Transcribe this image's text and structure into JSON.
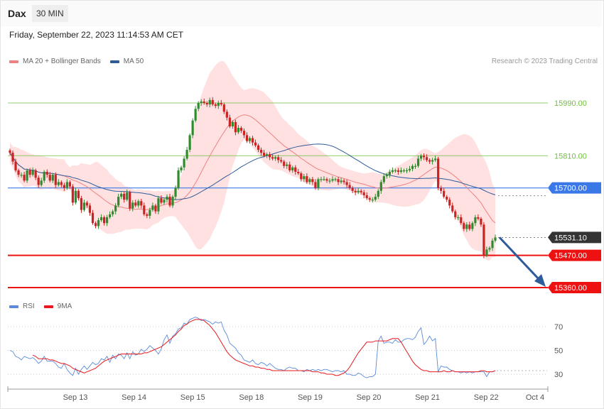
{
  "header": {
    "instrument": "Dax",
    "timeframe": "30 MIN"
  },
  "timestamp": "Friday, September 22, 2023 11:14:53 AM CET",
  "legend_main": [
    {
      "label": "MA 20 + Bollinger Bands",
      "color": "#f08080"
    },
    {
      "label": "MA 50",
      "color": "#2f5b9a"
    }
  ],
  "credit": "Research © 2023 Trading Central",
  "legend_rsi": [
    {
      "label": "RSI",
      "color": "#5b8bd9"
    },
    {
      "label": "9MA",
      "color": "#e8181e"
    }
  ],
  "colors": {
    "up": "#2e8b2e",
    "down": "#cc2222",
    "band": "#ffdcdc",
    "resistance": "#6fbf3c",
    "pivot": "#3b78e7",
    "support": "#ee1111",
    "price": "#333333",
    "arrow": "#2f5b9a"
  },
  "chart_data": [
    {
      "type": "candlestick",
      "ylim": [
        15278,
        15665
      ],
      "horizontal_levels": [
        {
          "value": 15990,
          "label": "15990.00",
          "kind": "resistance"
        },
        {
          "value": 15810,
          "label": "15810.00",
          "kind": "resistance"
        },
        {
          "value": 15700,
          "label": "15700.00",
          "kind": "pivot"
        },
        {
          "value": 15531.1,
          "label": "15531.10",
          "kind": "last-price"
        },
        {
          "value": 15470,
          "label": "15470.00",
          "kind": "support"
        },
        {
          "value": 15360,
          "label": "15360.00",
          "kind": "support"
        }
      ],
      "x_labels": [
        "Sep 13",
        "Sep 14",
        "Sep 15",
        "Sep 18",
        "Sep 19",
        "Sep 20",
        "Sep 21",
        "Sep 22",
        "Oct 4"
      ],
      "closes": [
        15820,
        15790,
        15760,
        15745,
        15745,
        15725,
        15760,
        15745,
        15760,
        15735,
        15710,
        15725,
        15755,
        15745,
        15725,
        15745,
        15710,
        15720,
        15710,
        15700,
        15720,
        15705,
        15650,
        15690,
        15665,
        15625,
        15650,
        15640,
        15615,
        15580,
        15570,
        15590,
        15600,
        15580,
        15600,
        15610,
        15620,
        15640,
        15670,
        15680,
        15660,
        15685,
        15630,
        15650,
        15640,
        15655,
        15640,
        15610,
        15605,
        15625,
        15640,
        15620,
        15665,
        15650,
        15660,
        15670,
        15640,
        15670,
        15700,
        15760,
        15770,
        15800,
        15830,
        15880,
        15930,
        15970,
        15990,
        15995,
        15990,
        15985,
        16000,
        15985,
        15980,
        15990,
        15985,
        15960,
        15940,
        15910,
        15925,
        15890,
        15905,
        15895,
        15880,
        15860,
        15870,
        15855,
        15845,
        15830,
        15820,
        15810,
        15815,
        15805,
        15800,
        15805,
        15795,
        15790,
        15775,
        15780,
        15760,
        15770,
        15755,
        15750,
        15730,
        15740,
        15720,
        15730,
        15720,
        15700,
        15730,
        15730,
        15730,
        15725,
        15725,
        15730,
        15730,
        15720,
        15725,
        15720,
        15710,
        15700,
        15690,
        15685,
        15690,
        15685,
        15675,
        15665,
        15660,
        15660,
        15670,
        15690,
        15720,
        15740,
        15745,
        15755,
        15760,
        15760,
        15755,
        15760,
        15760,
        15760,
        15765,
        15775,
        15775,
        15800,
        15810,
        15805,
        15795,
        15790,
        15795,
        15800,
        15700,
        15690,
        15670,
        15660,
        15640,
        15620,
        15600,
        15600,
        15580,
        15560,
        15575,
        15560,
        15580,
        15600,
        15595,
        15575,
        15470,
        15490,
        15495,
        15520,
        15531.1
      ]
    },
    {
      "type": "line",
      "ylim": [
        20,
        85
      ],
      "yticks": [
        70,
        50,
        30
      ],
      "series": [
        {
          "name": "RSI",
          "values": [
            50,
            49,
            45,
            44,
            42,
            45,
            44,
            43,
            44,
            42,
            39,
            41,
            45,
            41,
            41,
            41,
            39,
            36,
            35,
            39,
            34,
            31,
            29,
            35,
            30,
            34,
            37,
            34,
            37,
            40,
            38,
            39,
            43,
            42,
            45,
            40,
            46,
            43,
            47,
            46,
            43,
            48,
            43,
            49,
            46,
            47,
            51,
            49,
            51,
            54,
            52,
            50,
            47,
            51,
            59,
            63,
            56,
            62,
            64,
            68,
            69,
            73,
            72,
            76,
            77,
            78,
            77,
            75,
            76,
            75,
            74,
            72,
            74,
            73,
            74,
            67,
            63,
            56,
            54,
            52,
            48,
            46,
            42,
            41,
            40,
            42,
            39,
            38,
            40,
            39,
            37,
            39,
            37,
            35,
            34,
            34,
            33,
            35,
            36,
            35,
            35,
            33,
            33,
            32,
            34,
            33,
            34,
            33,
            34,
            33,
            34,
            34,
            33,
            32,
            33,
            33,
            32,
            33,
            30,
            30,
            29,
            29,
            31,
            30,
            28,
            27,
            28,
            28,
            30,
            58,
            62,
            56,
            57,
            57,
            56,
            59,
            57,
            57,
            59,
            60,
            60,
            59,
            61,
            66,
            69,
            55,
            58,
            62,
            58,
            60,
            32,
            37,
            36,
            36,
            34,
            33,
            32,
            32,
            31,
            32,
            31,
            32,
            31,
            32,
            32,
            32,
            32,
            28,
            32,
            32,
            33
          ]
        },
        {
          "name": "9MA",
          "values": [
            null,
            null,
            null,
            null,
            null,
            null,
            null,
            null,
            46,
            45,
            43,
            43,
            43,
            43,
            42,
            42,
            41,
            40,
            39,
            39,
            38,
            37,
            35,
            34,
            33,
            32,
            31,
            32,
            33,
            34,
            35,
            37,
            39,
            41,
            42,
            43,
            44,
            45,
            46,
            47,
            47,
            47,
            47,
            47,
            47,
            47,
            47,
            48,
            48,
            49,
            50,
            51,
            52,
            53,
            55,
            57,
            59,
            61,
            63,
            66,
            68,
            71,
            72,
            74,
            75,
            76,
            76,
            76,
            75,
            73,
            71,
            68,
            65,
            61,
            57,
            53,
            49,
            46,
            44,
            42,
            41,
            40,
            39,
            38,
            37,
            37,
            36,
            36,
            35,
            35,
            34,
            34,
            33,
            33,
            33,
            33,
            33,
            33,
            33,
            33,
            33,
            33,
            33,
            33,
            33,
            33,
            32,
            32,
            32,
            31,
            31,
            30,
            30,
            30,
            29,
            29,
            30,
            31,
            33,
            36,
            40,
            44,
            48,
            51,
            54,
            57,
            57,
            57,
            58,
            58,
            58,
            58,
            58,
            59,
            60,
            60,
            60,
            57,
            53,
            49,
            45,
            41,
            38,
            36,
            34,
            33,
            33,
            32,
            32,
            32,
            32,
            32,
            33,
            32,
            32,
            33,
            32,
            32,
            32,
            32,
            32,
            32,
            32,
            32,
            32,
            33,
            33,
            32,
            32,
            32,
            33
          ]
        }
      ]
    }
  ]
}
